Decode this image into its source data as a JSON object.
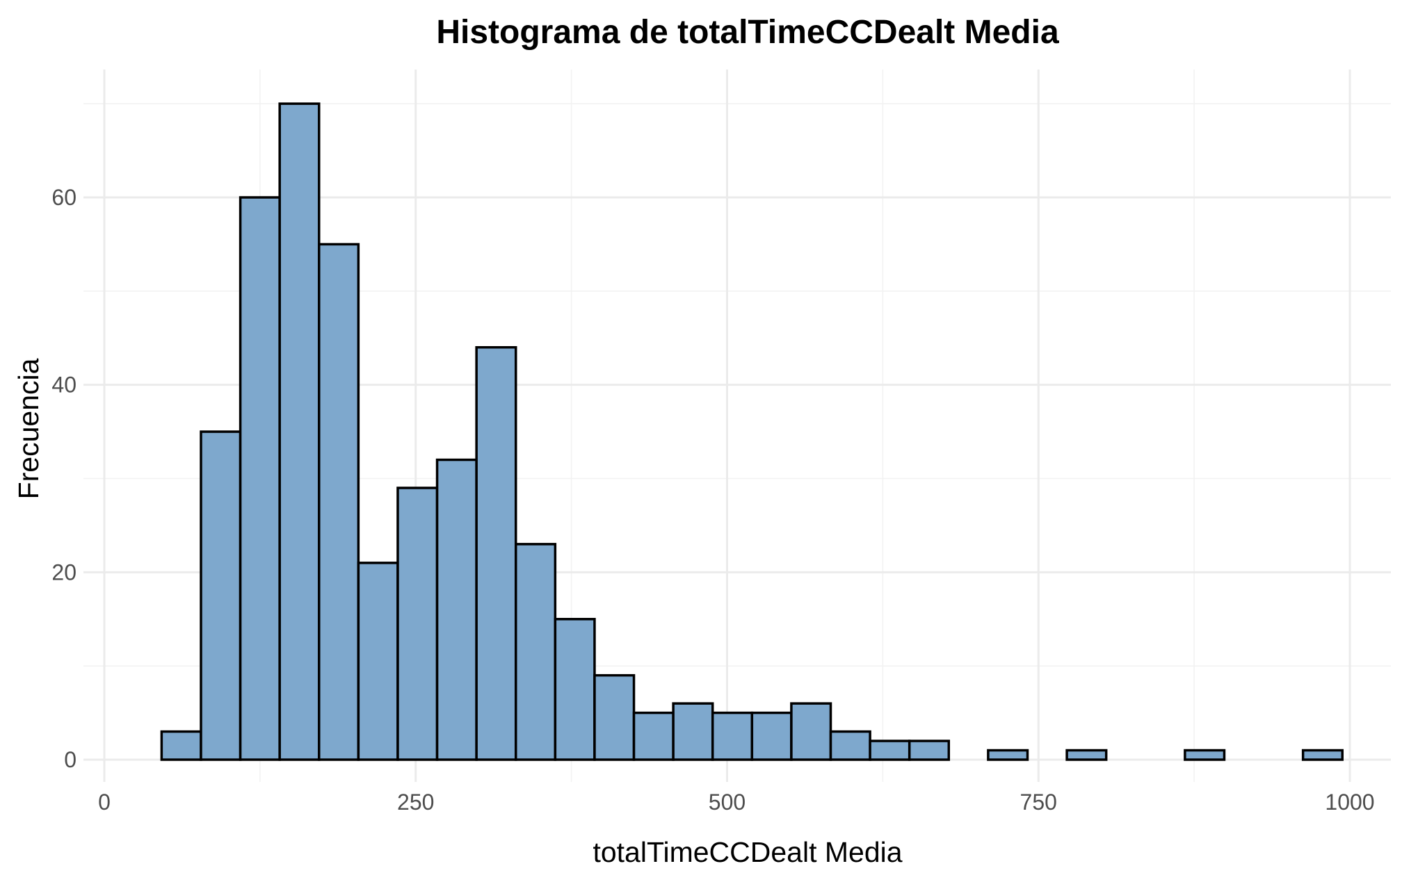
{
  "chart_data": {
    "type": "bar",
    "title": "Histograma de totalTimeCCDealt Media",
    "xlabel": "totalTimeCCDealt Media",
    "ylabel": "Frecuencia",
    "xlim": [
      0,
      1000
    ],
    "ylim": [
      0,
      70
    ],
    "x_ticks": [
      0,
      250,
      500,
      750,
      1000
    ],
    "y_ticks": [
      0,
      20,
      40,
      60
    ],
    "grid": true,
    "bin_width": 31.6,
    "bin_start": 46,
    "counts": [
      3,
      35,
      60,
      70,
      55,
      21,
      29,
      32,
      44,
      23,
      15,
      9,
      5,
      6,
      5,
      5,
      6,
      3,
      2,
      2,
      0,
      1,
      0,
      1,
      0,
      0,
      1,
      0,
      0,
      1
    ],
    "fill_color": "#7ea8cd",
    "edge_color": "#000000"
  }
}
